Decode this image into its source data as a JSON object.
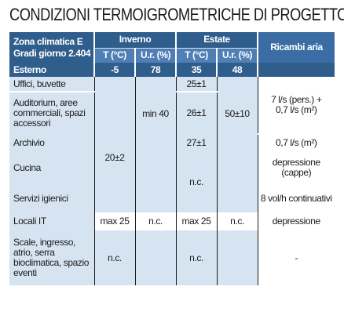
{
  "title": "CONDIZIONI TERMOIGROMETRICHE DI PROGETTO",
  "header": {
    "zona_line1": "Zona climatica E",
    "zona_line2": "Gradi giorno 2.404",
    "inverno": "Inverno",
    "estate": "Estate",
    "temp": "T (°C)",
    "ur": "U.r. (%)",
    "ricambi": "Ricambi aria"
  },
  "esterno": {
    "label": "Esterno",
    "inv_t": "-5",
    "inv_ur": "78",
    "est_t": "35",
    "est_ur": "48"
  },
  "rows": {
    "uffici": {
      "label": "Uffici, buvette",
      "est_t": "25±1"
    },
    "auditorium": {
      "label": "Auditorium, aree commerciali, spazi accessori",
      "est_t": "26±1"
    },
    "archivio": {
      "label": "Archivio",
      "est_t": "27±1",
      "ricambi": "0,7 l/s (m²)"
    },
    "cucina": {
      "label": "Cucina",
      "ricambi": "depressione (cappe)"
    },
    "servizi": {
      "label": "Servizi igienici",
      "ricambi": "8 vol/h continuativi"
    },
    "locali_it": {
      "label": "Locali IT",
      "inv_t": "max 25",
      "inv_ur": "n.c.",
      "est_t": "max 25",
      "est_ur": "n.c.",
      "ricambi": "depressione"
    },
    "scale": {
      "label": "Scale, ingresso, atrio, serra bioclimatica, spazio eventi",
      "inv_t": "n.c.",
      "est_t": "n.c.",
      "ricambi": "-"
    }
  },
  "merged": {
    "inv_ur_offices": "min 40",
    "est_ur_offices": "50±10",
    "ricambi_offices": "7 l/s (pers.) + 0,7 l/s (m²)",
    "inv_t_archivio": "20±2",
    "est_t_cucina_servizi": "n.c."
  }
}
